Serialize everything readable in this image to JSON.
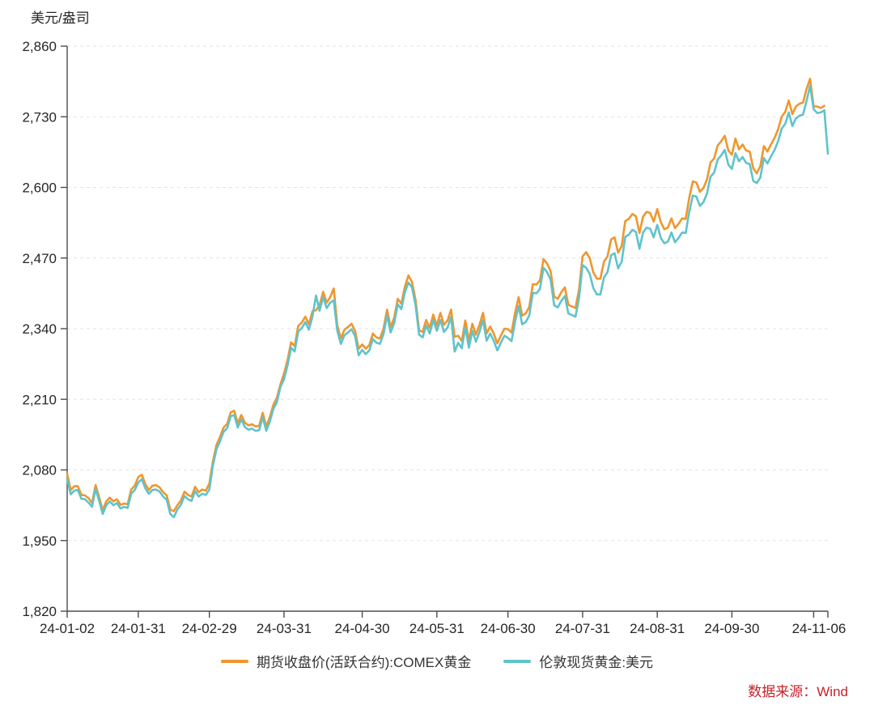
{
  "chart_data": {
    "type": "line",
    "title": "",
    "y_axis_title": "美元/盎司",
    "xlabel": "",
    "ylabel": "美元/盎司",
    "ylim": [
      1820,
      2860
    ],
    "y_ticks": [
      1820,
      1950,
      2080,
      2210,
      2340,
      2470,
      2600,
      2730,
      2860
    ],
    "grid": "horizontal-dashed",
    "legend_position": "bottom-center",
    "x_total_points": 215,
    "x_ticks": [
      {
        "day": 0,
        "label": "24-01-02"
      },
      {
        "day": 20,
        "label": "24-01-31"
      },
      {
        "day": 40,
        "label": "24-02-29"
      },
      {
        "day": 61,
        "label": "24-03-31"
      },
      {
        "day": 83,
        "label": "24-04-30"
      },
      {
        "day": 104,
        "label": "24-05-31"
      },
      {
        "day": 124,
        "label": "24-06-30"
      },
      {
        "day": 145,
        "label": "24-07-31"
      },
      {
        "day": 166,
        "label": "24-08-31"
      },
      {
        "day": 187,
        "label": "24-09-30"
      },
      {
        "day": 214,
        "label": "24-11-06"
      }
    ],
    "x_minor_tick_days": [
      210
    ],
    "series": [
      {
        "name": "期货收盘价(活跃合约):COMEX黄金",
        "color": "#F0962E",
        "values": [
          2073,
          2043,
          2050,
          2050,
          2034,
          2033,
          2028,
          2019,
          2052,
          2030,
          2006,
          2022,
          2029,
          2022,
          2026,
          2016,
          2018,
          2017,
          2044,
          2051,
          2067,
          2071,
          2054,
          2043,
          2051,
          2052,
          2048,
          2039,
          2033,
          2007,
          2004,
          2015,
          2024,
          2040,
          2034,
          2031,
          2049,
          2039,
          2044,
          2042,
          2055,
          2096,
          2126,
          2141,
          2158,
          2165,
          2186,
          2189,
          2166,
          2181,
          2167,
          2162,
          2164,
          2160,
          2161,
          2185,
          2160,
          2177,
          2200,
          2213,
          2238,
          2257,
          2282,
          2315,
          2308,
          2345,
          2351,
          2362,
          2348,
          2372,
          2374,
          2383,
          2408,
          2388,
          2398,
          2414,
          2346,
          2322,
          2338,
          2343,
          2349,
          2336,
          2303,
          2311,
          2303,
          2310,
          2331,
          2324,
          2322,
          2340,
          2375,
          2343,
          2360,
          2395,
          2386,
          2417,
          2438,
          2426,
          2393,
          2337,
          2334,
          2356,
          2341,
          2366,
          2346,
          2369,
          2347,
          2355,
          2375,
          2325,
          2327,
          2317,
          2355,
          2318,
          2349,
          2329,
          2347,
          2369,
          2331,
          2344,
          2331,
          2313,
          2327,
          2340,
          2339,
          2333,
          2369,
          2398,
          2364,
          2368,
          2380,
          2422,
          2421,
          2429,
          2468,
          2460,
          2446,
          2399,
          2395,
          2407,
          2416,
          2384,
          2381,
          2378,
          2412,
          2473,
          2481,
          2470,
          2444,
          2432,
          2432,
          2463,
          2473,
          2504,
          2508,
          2480,
          2492,
          2538,
          2542,
          2551,
          2547,
          2516,
          2546,
          2555,
          2553,
          2537,
          2560,
          2536,
          2523,
          2526,
          2543,
          2525,
          2533,
          2543,
          2542,
          2581,
          2611,
          2609,
          2592,
          2599,
          2615,
          2646,
          2653,
          2677,
          2685,
          2695,
          2668,
          2660,
          2690,
          2670,
          2679,
          2668,
          2666,
          2635,
          2626,
          2639,
          2676,
          2666,
          2679,
          2691,
          2707,
          2730,
          2739,
          2760,
          2735,
          2749,
          2754,
          2756,
          2781,
          2800,
          2749,
          2749,
          2746,
          2750
        ]
      },
      {
        "name": "伦敦现货黄金:美元",
        "color": "#5FC3CB",
        "values": [
          2063,
          2035,
          2042,
          2043,
          2027,
          2026,
          2020,
          2012,
          2045,
          2023,
          1999,
          2015,
          2022,
          2015,
          2019,
          2009,
          2012,
          2010,
          2036,
          2043,
          2057,
          2063,
          2046,
          2036,
          2043,
          2044,
          2040,
          2031,
          2025,
          1999,
          1993,
          2007,
          2016,
          2032,
          2026,
          2023,
          2041,
          2031,
          2036,
          2034,
          2044,
          2088,
          2118,
          2133,
          2150,
          2157,
          2179,
          2181,
          2158,
          2173,
          2159,
          2154,
          2156,
          2152,
          2153,
          2177,
          2152,
          2169,
          2192,
          2205,
          2233,
          2247,
          2272,
          2305,
          2298,
          2335,
          2341,
          2352,
          2338,
          2362,
          2401,
          2373,
          2398,
          2378,
          2388,
          2392,
          2336,
          2312,
          2328,
          2333,
          2339,
          2326,
          2291,
          2301,
          2293,
          2300,
          2321,
          2314,
          2312,
          2330,
          2365,
          2333,
          2350,
          2385,
          2376,
          2407,
          2425,
          2416,
          2383,
          2329,
          2324,
          2346,
          2331,
          2356,
          2336,
          2356,
          2334,
          2342,
          2362,
          2298,
          2314,
          2304,
          2342,
          2305,
          2336,
          2316,
          2334,
          2356,
          2318,
          2331,
          2318,
          2300,
          2314,
          2327,
          2323,
          2317,
          2353,
          2382,
          2348,
          2352,
          2364,
          2406,
          2405,
          2413,
          2452,
          2444,
          2430,
          2383,
          2379,
          2391,
          2400,
          2368,
          2365,
          2362,
          2396,
          2457,
          2452,
          2441,
          2415,
          2403,
          2403,
          2434,
          2444,
          2475,
          2479,
          2451,
          2463,
          2509,
          2513,
          2522,
          2518,
          2487,
          2517,
          2526,
          2524,
          2508,
          2531,
          2507,
          2497,
          2500,
          2517,
          2499,
          2507,
          2517,
          2516,
          2555,
          2585,
          2583,
          2566,
          2573,
          2589,
          2620,
          2627,
          2651,
          2659,
          2669,
          2642,
          2634,
          2663,
          2648,
          2656,
          2645,
          2643,
          2612,
          2608,
          2618,
          2654,
          2644,
          2657,
          2669,
          2685,
          2708,
          2717,
          2738,
          2713,
          2727,
          2732,
          2734,
          2759,
          2787,
          2744,
          2737,
          2738,
          2742,
          2662
        ]
      }
    ],
    "source": "数据来源：Wind",
    "colors": {
      "grid": "#E3E3E3",
      "axis": "#4D4D4D",
      "tick_label": "#262626",
      "source_text": "#C5232B",
      "background": "#FFFFFF"
    }
  }
}
